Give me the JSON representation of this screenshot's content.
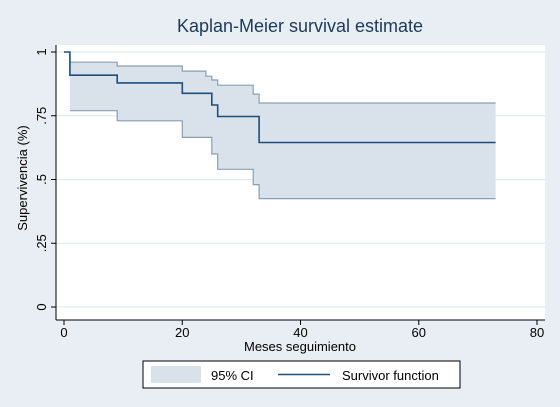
{
  "chart_data": {
    "type": "line",
    "title": "Kaplan-Meier survival estimate",
    "xlabel": "Meses seguimiento",
    "ylabel": "Supervivencia (%)",
    "xlim": [
      0,
      80
    ],
    "ylim": [
      0,
      1
    ],
    "x_ticks": [
      0,
      20,
      40,
      60,
      80
    ],
    "x_tick_labels": [
      "0",
      "20",
      "40",
      "60",
      "80"
    ],
    "y_ticks": [
      0,
      0.25,
      0.5,
      0.75,
      1
    ],
    "y_tick_labels": [
      "0",
      ".25",
      ".5",
      ".75",
      "1"
    ],
    "grid": "horizontal",
    "legend_position": "bottom",
    "colors": {
      "survivor": "#1f4e79",
      "ci_fill": "#d9e1ea",
      "ci_line": "#8b9fb4",
      "background": "#e8eef3",
      "plot_background": "#ffffff",
      "grid": "#dfe6ec"
    },
    "series": [
      {
        "name": "Survivor function",
        "x": [
          0,
          1,
          9,
          20,
          25,
          26,
          33,
          73
        ],
        "y": [
          1,
          0.909,
          0.879,
          0.838,
          0.792,
          0.747,
          0.645,
          0.645
        ]
      },
      {
        "name": "95% CI",
        "x": [
          1,
          9,
          20,
          24,
          25,
          26,
          32,
          33,
          73
        ],
        "upper": [
          0.96,
          0.945,
          0.925,
          0.905,
          0.89,
          0.87,
          0.835,
          0.8,
          0.8
        ],
        "lower": [
          0.77,
          0.73,
          0.665,
          0.665,
          0.6,
          0.54,
          0.48,
          0.425,
          0.425
        ]
      }
    ]
  }
}
